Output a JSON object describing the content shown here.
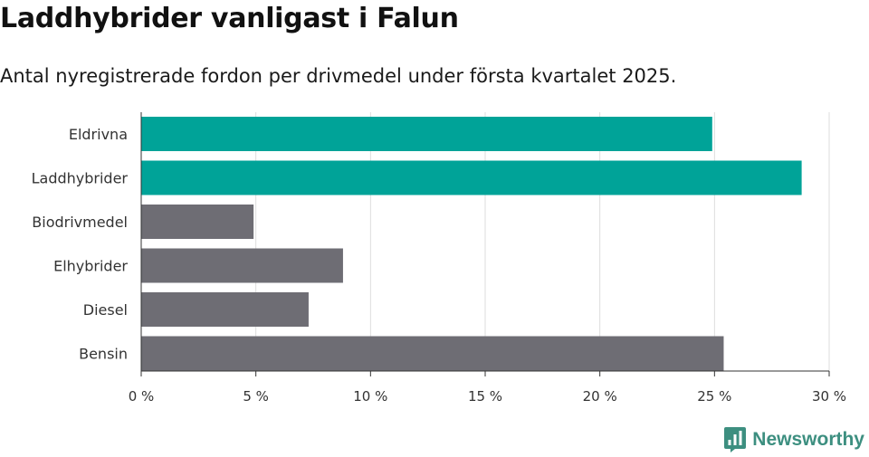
{
  "header": {
    "title": "Laddhybrider vanligast i Falun",
    "subtitle": "Antal nyregistrerade fordon per drivmedel under första kvartalet 2025."
  },
  "brand": {
    "name": "Newsworthy",
    "icon": "newsworthy-logo-icon",
    "color": "#3d8f80"
  },
  "colors": {
    "highlight": "#00a398",
    "default": "#6e6d74",
    "grid": "#dddddd",
    "axis": "#333333"
  },
  "chart_data": {
    "type": "bar",
    "orientation": "horizontal",
    "categories": [
      "Eldrivna",
      "Laddhybrider",
      "Biodrivmedel",
      "Elhybrider",
      "Diesel",
      "Bensin"
    ],
    "values": [
      24.9,
      28.8,
      4.9,
      8.8,
      7.3,
      25.4
    ],
    "highlighted": [
      true,
      true,
      false,
      false,
      false,
      false
    ],
    "xlim": [
      0,
      30
    ],
    "x_ticks": [
      0,
      5,
      10,
      15,
      20,
      25,
      30
    ],
    "x_tick_labels": [
      "0 %",
      "5 %",
      "10 %",
      "15 %",
      "20 %",
      "25 %",
      "30 %"
    ],
    "xlabel": "",
    "ylabel": "",
    "grid": true,
    "legend": "none"
  }
}
